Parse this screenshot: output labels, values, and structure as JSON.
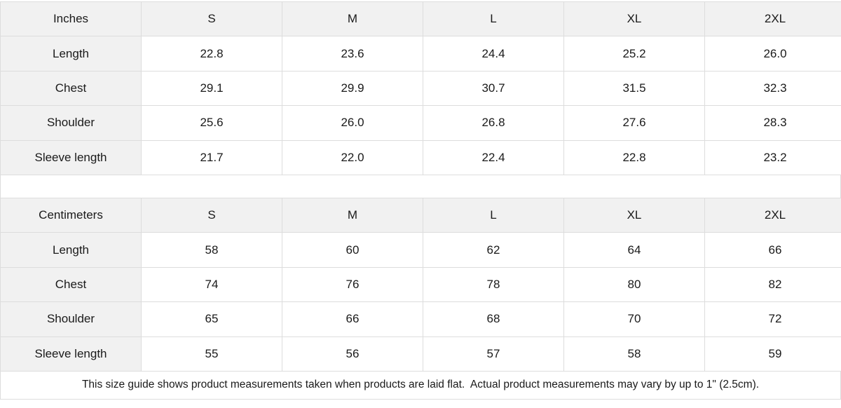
{
  "tables": [
    {
      "unit_label": "Inches",
      "sizes": [
        "S",
        "M",
        "L",
        "XL",
        "2XL"
      ],
      "rows": [
        {
          "label": "Length",
          "values": [
            "22.8",
            "23.6",
            "24.4",
            "25.2",
            "26.0"
          ]
        },
        {
          "label": "Chest",
          "values": [
            "29.1",
            "29.9",
            "30.7",
            "31.5",
            "32.3"
          ]
        },
        {
          "label": "Shoulder",
          "values": [
            "25.6",
            "26.0",
            "26.8",
            "27.6",
            "28.3"
          ]
        },
        {
          "label": "Sleeve length",
          "values": [
            "21.7",
            "22.0",
            "22.4",
            "22.8",
            "23.2"
          ]
        }
      ]
    },
    {
      "unit_label": "Centimeters",
      "sizes": [
        "S",
        "M",
        "L",
        "XL",
        "2XL"
      ],
      "rows": [
        {
          "label": "Length",
          "values": [
            "58",
            "60",
            "62",
            "64",
            "66"
          ]
        },
        {
          "label": "Chest",
          "values": [
            "74",
            "76",
            "78",
            "80",
            "82"
          ]
        },
        {
          "label": "Shoulder",
          "values": [
            "65",
            "66",
            "68",
            "70",
            "72"
          ]
        },
        {
          "label": "Sleeve length",
          "values": [
            "55",
            "56",
            "57",
            "58",
            "59"
          ]
        }
      ]
    }
  ],
  "footnote": "This size guide shows product measurements taken when products are laid flat.  Actual product measurements may vary by up to 1\" (2.5cm).",
  "colors": {
    "header_bg": "#f1f1f1",
    "border": "#dddddd",
    "text": "#1a1a1a"
  }
}
